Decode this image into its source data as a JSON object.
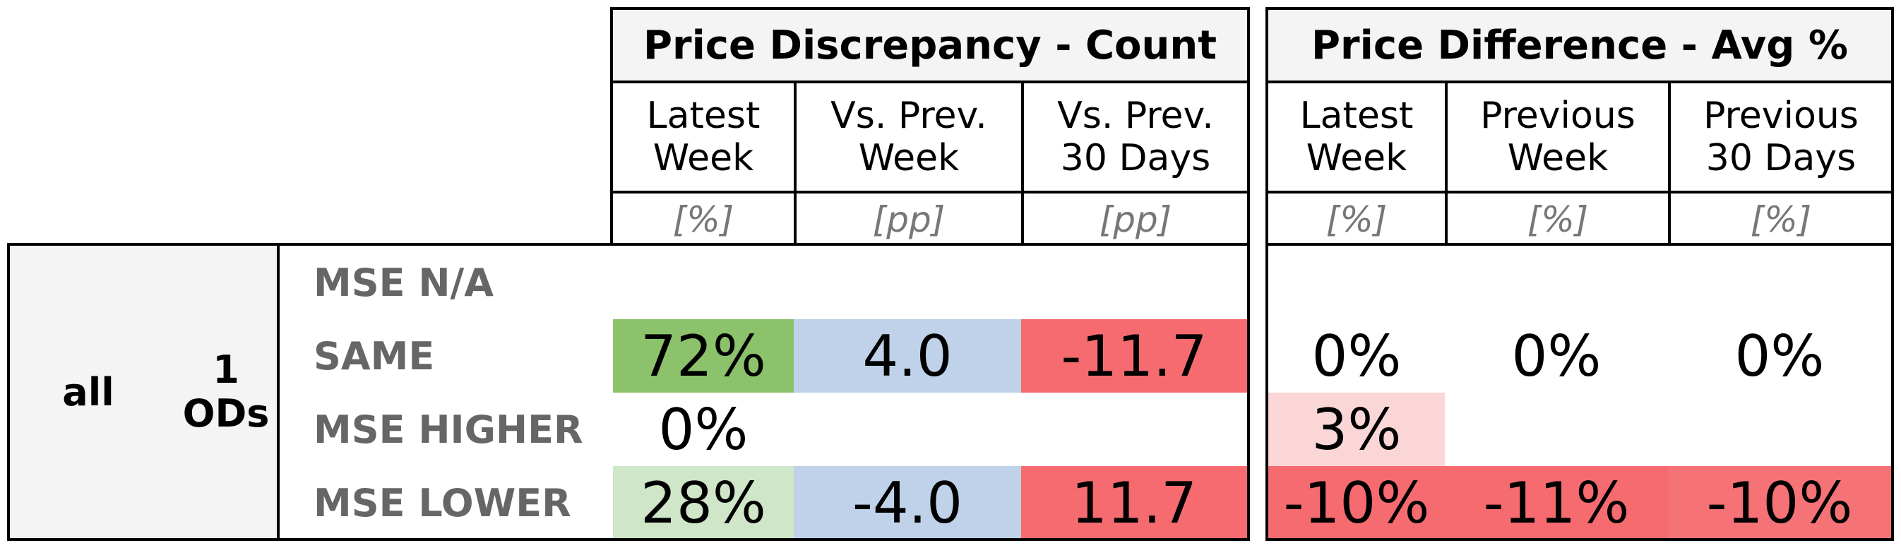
{
  "groups": {
    "discrepancy": {
      "title": "Price Discrepancy - Count",
      "columns": [
        {
          "label_l1": "Latest",
          "label_l2": "Week",
          "unit": "[%]"
        },
        {
          "label_l1": "Vs. Prev.",
          "label_l2": "Week",
          "unit": "[pp]"
        },
        {
          "label_l1": "Vs. Prev.",
          "label_l2": "30 Days",
          "unit": "[pp]"
        }
      ]
    },
    "difference": {
      "title": "Price Difference - Avg %",
      "columns": [
        {
          "label_l1": "Latest",
          "label_l2": "Week",
          "unit": "[%]"
        },
        {
          "label_l1": "Previous",
          "label_l2": "Week",
          "unit": "[%]"
        },
        {
          "label_l1": "Previous",
          "label_l2": "30 Days",
          "unit": "[%]"
        }
      ]
    }
  },
  "row_header": {
    "group": "all",
    "count": "1",
    "count_unit": "ODs"
  },
  "rows": [
    {
      "label": "MSE N/A",
      "disc": [
        {
          "v": "",
          "c": ""
        },
        {
          "v": "",
          "c": ""
        },
        {
          "v": "",
          "c": ""
        }
      ],
      "diff": [
        {
          "v": "",
          "c": ""
        },
        {
          "v": "",
          "c": ""
        },
        {
          "v": "",
          "c": ""
        }
      ]
    },
    {
      "label": "SAME",
      "disc": [
        {
          "v": "72%",
          "c": "#8bc26b"
        },
        {
          "v": "4.0",
          "c": "#bfd2ea"
        },
        {
          "v": "-11.7",
          "c": "#f56b70"
        }
      ],
      "diff": [
        {
          "v": "0%",
          "c": ""
        },
        {
          "v": "0%",
          "c": ""
        },
        {
          "v": "0%",
          "c": ""
        }
      ]
    },
    {
      "label": "MSE HIGHER",
      "disc": [
        {
          "v": "0%",
          "c": ""
        },
        {
          "v": "",
          "c": ""
        },
        {
          "v": "",
          "c": ""
        }
      ],
      "diff": [
        {
          "v": "3%",
          "c": "#fbd6d7"
        },
        {
          "v": "",
          "c": ""
        },
        {
          "v": "",
          "c": ""
        }
      ]
    },
    {
      "label": "MSE LOWER",
      "disc": [
        {
          "v": "28%",
          "c": "#cfe6c8"
        },
        {
          "v": "-4.0",
          "c": "#bfd2ea"
        },
        {
          "v": "11.7",
          "c": "#f56b70"
        }
      ],
      "diff": [
        {
          "v": "-10%",
          "c": "#f56b70"
        },
        {
          "v": "-11%",
          "c": "#f56b70"
        },
        {
          "v": "-10%",
          "c": "#f57276"
        }
      ]
    }
  ]
}
